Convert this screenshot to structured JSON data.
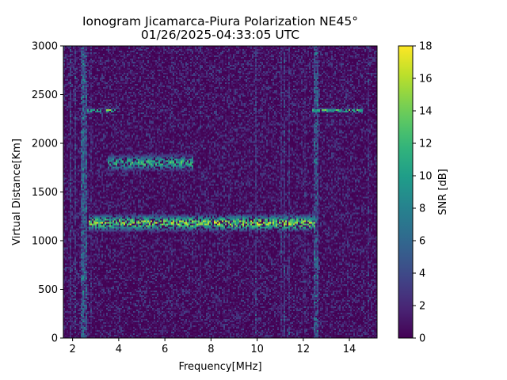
{
  "chart_data": {
    "type": "heatmap",
    "title": "Ionogram Jicamarca-Piura Polarization NE45°",
    "subtitle": "01/26/2025-04:33:05 UTC",
    "xlabel": "Frequency[MHz]",
    "ylabel": "Virtual Distance[Km]",
    "xlim": [
      1.6,
      15.2
    ],
    "ylim": [
      0,
      3000
    ],
    "x_ticks": [
      2,
      4,
      6,
      8,
      10,
      12,
      14
    ],
    "y_ticks": [
      0,
      500,
      1000,
      1500,
      2000,
      2500,
      3000
    ],
    "colorbar": {
      "label": "SNR [dB]",
      "range": [
        0,
        18
      ],
      "ticks": [
        0,
        2,
        4,
        6,
        8,
        10,
        12,
        14,
        16,
        18
      ],
      "colormap": "viridis"
    },
    "grid": false,
    "echo_features": [
      {
        "name": "F-layer trace",
        "x_range": [
          2.7,
          12.5
        ],
        "y_center": 1180,
        "snr_peak": 18
      },
      {
        "name": "second hop",
        "x_range": [
          3.5,
          7.2
        ],
        "y_center": 1800,
        "snr_peak": 14
      },
      {
        "name": "interference line",
        "x_range": [
          2.6,
          4.0
        ],
        "y_center": 2335,
        "snr_peak": 17
      },
      {
        "name": "interference line",
        "x_range": [
          12.4,
          14.6
        ],
        "y_center": 2335,
        "snr_peak": 17
      }
    ]
  }
}
